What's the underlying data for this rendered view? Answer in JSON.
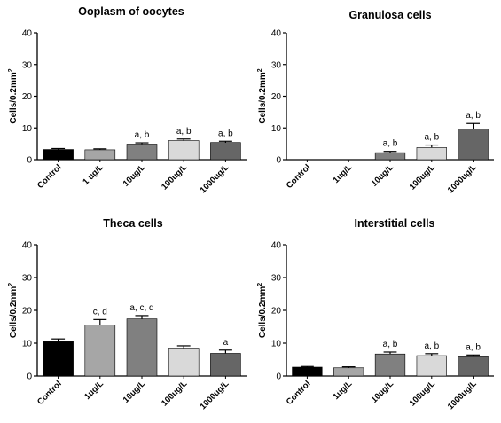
{
  "chart_data": [
    {
      "type": "bar",
      "title": "Ooplasm of oocytes",
      "ylabel": "Cells/0.2mm",
      "ylabel_sup": "2",
      "ylim": [
        0,
        40
      ],
      "yticks": [
        "0",
        "10",
        "20",
        "30",
        "40"
      ],
      "categories": [
        "Control",
        "1 ug/L",
        "10ug/L",
        "100ug/L",
        "1000ug/L"
      ],
      "values": [
        3.2,
        3.1,
        4.9,
        6.0,
        5.4
      ],
      "errors": [
        0.3,
        0.3,
        0.4,
        0.5,
        0.4
      ],
      "annotations": [
        "",
        "",
        "a, b",
        "a, b",
        "a, b"
      ],
      "colors": [
        "#000000",
        "#a6a6a6",
        "#808080",
        "#d9d9d9",
        "#666666"
      ]
    },
    {
      "type": "bar",
      "title": "Granulosa cells",
      "ylabel": "Cells/0.2mm",
      "ylabel_sup": "2",
      "ylim": [
        0,
        40
      ],
      "yticks": [
        "0",
        "10",
        "20",
        "30",
        "40"
      ],
      "categories": [
        "Control",
        "1ug/L",
        "10ug/L",
        "100ug/L",
        "1000ug/L"
      ],
      "values": [
        0,
        0,
        2.2,
        3.8,
        9.7
      ],
      "errors": [
        0,
        0,
        0.4,
        0.8,
        1.7
      ],
      "annotations": [
        "",
        "",
        "a, b",
        "a, b",
        "a, b"
      ],
      "colors": [
        "#000000",
        "#a6a6a6",
        "#808080",
        "#d9d9d9",
        "#666666"
      ]
    },
    {
      "type": "bar",
      "title": "Theca cells",
      "ylabel": "Cells/0.2mm",
      "ylabel_sup": "2",
      "ylim": [
        0,
        40
      ],
      "yticks": [
        "0",
        "10",
        "20",
        "30",
        "40"
      ],
      "categories": [
        "Control",
        "1ug/L",
        "10ug/L",
        "100ug/L",
        "1000ug/L"
      ],
      "values": [
        10.5,
        15.5,
        17.4,
        8.5,
        6.9
      ],
      "errors": [
        0.8,
        1.7,
        1.0,
        0.7,
        1.0
      ],
      "annotations": [
        "",
        "c, d",
        "a, c, d",
        "",
        "a"
      ],
      "colors": [
        "#000000",
        "#a6a6a6",
        "#808080",
        "#d9d9d9",
        "#666666"
      ]
    },
    {
      "type": "bar",
      "title": "Interstitial cells",
      "ylabel": "Cells/0.2mm",
      "ylabel_sup": "2",
      "ylim": [
        0,
        40
      ],
      "yticks": [
        "0",
        "10",
        "20",
        "30",
        "40"
      ],
      "categories": [
        "Control",
        "1ug/L",
        "10ug/L",
        "100ug/L",
        "1000ug/L"
      ],
      "values": [
        2.7,
        2.5,
        6.7,
        6.2,
        5.9
      ],
      "errors": [
        0.2,
        0.3,
        0.6,
        0.6,
        0.5
      ],
      "annotations": [
        "",
        "",
        "a, b",
        "a, b",
        "a, b"
      ],
      "colors": [
        "#000000",
        "#a6a6a6",
        "#808080",
        "#d9d9d9",
        "#666666"
      ]
    }
  ]
}
